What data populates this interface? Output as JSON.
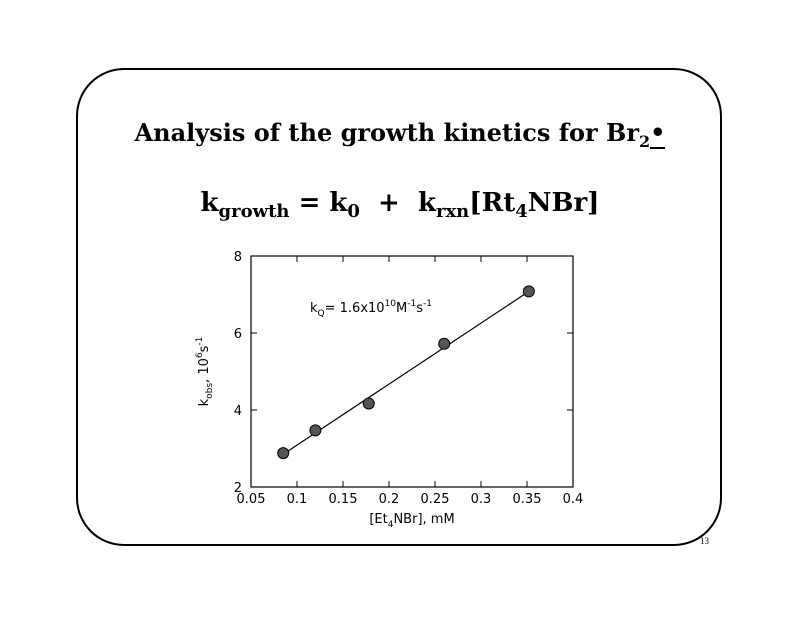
{
  "slide": {
    "title_text": "Analysis of the growth kinetics for Br",
    "title_sub": "2",
    "title_radical": "•",
    "equation": {
      "k": "k",
      "growth_sub": "growth",
      "equals": " = ",
      "k0": "k",
      "k0_sub": "0",
      "plus": "  +  ",
      "krxn": "k",
      "krxn_sub": "rxn",
      "bracket_open": "[Rt",
      "rt_sub": "4",
      "bracket_close": "NBr]"
    },
    "page_number": "13"
  },
  "chart_data": {
    "type": "scatter",
    "x": [
      0.085,
      0.12,
      0.178,
      0.26,
      0.352
    ],
    "y": [
      2.88,
      3.47,
      4.17,
      5.72,
      7.08
    ],
    "fit_line": {
      "x": [
        0.085,
        0.352
      ],
      "y": [
        2.85,
        7.08
      ]
    },
    "xlim": [
      0.05,
      0.4
    ],
    "ylim": [
      2,
      8
    ],
    "x_ticks": [
      0.05,
      0.1,
      0.15,
      0.2,
      0.25,
      0.3,
      0.35,
      0.4
    ],
    "x_tick_labels": [
      "0.05",
      "0.1",
      "0.15",
      "0.2",
      "0.25",
      "0.3",
      "0.35",
      "0.4"
    ],
    "y_ticks": [
      2,
      4,
      6,
      8
    ],
    "y_tick_labels": [
      "2",
      "4",
      "6",
      "8"
    ],
    "xlabel": {
      "pre": "[Et",
      "sub": "4",
      "post": "NBr], mM"
    },
    "ylabel": {
      "k": "k",
      "sub": "obs",
      "mid": ", 10",
      "sup": "6",
      "s": "s",
      "sup2": "-1"
    },
    "annotation": {
      "k": "k",
      "sub": "Q",
      "eq": "= 1.6x10",
      "sup1": "10",
      "M": "M",
      "sup2": "-1",
      "s": "s",
      "sup3": "-1"
    },
    "grid": false,
    "marker_color": "#555555"
  }
}
